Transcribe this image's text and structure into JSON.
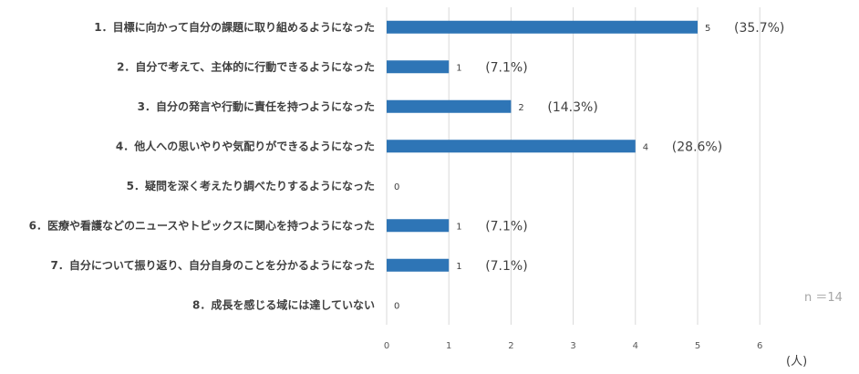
{
  "chart_data": {
    "type": "bar",
    "orientation": "horizontal",
    "categories": [
      "1．目標に向かって自分の課題に取り組めるようになった",
      "2．自分で考えて、主体的に行動できるようになった",
      "3．自分の発言や行動に責任を持つようになった",
      "4．他人への思いやりや気配りができるようになった",
      "5．疑問を深く考えたり調べたりするようになった",
      "6．医療や看護などのニュースやトピックスに関心を持つようになった",
      "7．自分について振り返り、自分自身のことを分かるようになった",
      "8．成長を感じる域には達していない"
    ],
    "values": [
      5,
      1,
      2,
      4,
      0,
      1,
      1,
      0
    ],
    "value_labels": [
      "5",
      "1",
      "2",
      "4",
      "0",
      "1",
      "1",
      "0"
    ],
    "percent_labels": [
      "(35.7%)",
      "(7.1%)",
      "(14.3%)",
      "(28.6%)",
      "",
      "(7.1%)",
      "(7.1%)",
      ""
    ],
    "x_ticks": [
      "0",
      "1",
      "2",
      "3",
      "4",
      "5",
      "6"
    ],
    "xlim": [
      0,
      6
    ],
    "xunit": "(人)",
    "note": "n ＝14",
    "bar_color": "#2e75b6",
    "grid": true,
    "grid_color": "#d9d9d9"
  }
}
